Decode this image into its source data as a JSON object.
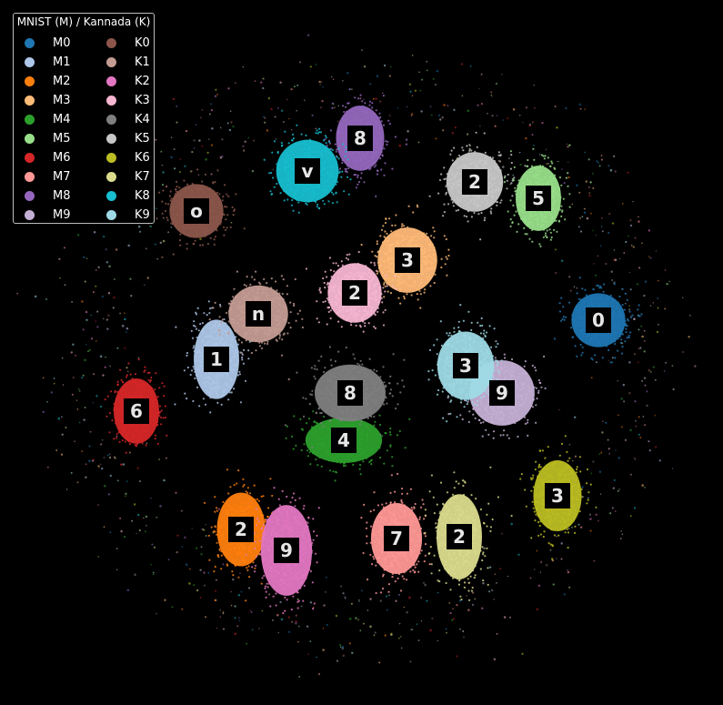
{
  "chart_data": {
    "type": "scatter",
    "title": "",
    "xlabel": "",
    "ylabel": "",
    "legend": {
      "title": "MNIST (M) / Kannada (K)",
      "placement": "top-left"
    },
    "series": [
      {
        "name": "M0",
        "color": "#1f77b4",
        "center": [
          658,
          352
        ],
        "spread": [
          38,
          38
        ],
        "thumb": "0"
      },
      {
        "name": "M1",
        "color": "#aec7e8",
        "center": [
          238,
          395
        ],
        "spread": [
          32,
          56
        ],
        "thumb": "1"
      },
      {
        "name": "M2",
        "color": "#ff7f0e",
        "center": [
          265,
          582
        ],
        "spread": [
          34,
          52
        ],
        "thumb": "2"
      },
      {
        "name": "M3",
        "color": "#ffbb78",
        "center": [
          448,
          286
        ],
        "spread": [
          42,
          46
        ],
        "thumb": "3"
      },
      {
        "name": "M4",
        "color": "#2ca02c",
        "center": [
          378,
          484
        ],
        "spread": [
          54,
          32
        ],
        "thumb": "4"
      },
      {
        "name": "M5",
        "color": "#98df8a",
        "center": [
          592,
          218
        ],
        "spread": [
          32,
          46
        ],
        "thumb": "5"
      },
      {
        "name": "M6",
        "color": "#d62728",
        "center": [
          150,
          452
        ],
        "spread": [
          32,
          46
        ],
        "thumb": "6"
      },
      {
        "name": "M7",
        "color": "#ff9896",
        "center": [
          436,
          592
        ],
        "spread": [
          36,
          50
        ],
        "thumb": "7"
      },
      {
        "name": "M8",
        "color": "#9467bd",
        "center": [
          396,
          152
        ],
        "spread": [
          34,
          46
        ],
        "thumb": "8"
      },
      {
        "name": "M9",
        "color": "#c5b0d5",
        "center": [
          552,
          432
        ],
        "spread": [
          46,
          46
        ],
        "thumb": "9"
      },
      {
        "name": "K0",
        "color": "#8c564b",
        "center": [
          216,
          232
        ],
        "spread": [
          38,
          38
        ],
        "thumb": "o"
      },
      {
        "name": "K1",
        "color": "#c49c94",
        "center": [
          284,
          345
        ],
        "spread": [
          42,
          40
        ],
        "thumb": "n"
      },
      {
        "name": "K2",
        "color": "#e377c2",
        "center": [
          315,
          605
        ],
        "spread": [
          36,
          64
        ],
        "thumb": "9"
      },
      {
        "name": "K3",
        "color": "#f7b6d2",
        "center": [
          390,
          322
        ],
        "spread": [
          38,
          42
        ],
        "thumb": "2"
      },
      {
        "name": "K4",
        "color": "#7f7f7f",
        "center": [
          385,
          432
        ],
        "spread": [
          50,
          40
        ],
        "thumb": "8"
      },
      {
        "name": "K5",
        "color": "#c7c7c7",
        "center": [
          522,
          200
        ],
        "spread": [
          40,
          42
        ],
        "thumb": "2"
      },
      {
        "name": "K6",
        "color": "#bcbd22",
        "center": [
          613,
          545
        ],
        "spread": [
          34,
          50
        ],
        "thumb": "3"
      },
      {
        "name": "K7",
        "color": "#dbdb8d",
        "center": [
          505,
          590
        ],
        "spread": [
          32,
          60
        ],
        "thumb": "2"
      },
      {
        "name": "K8",
        "color": "#17becf",
        "center": [
          338,
          188
        ],
        "spread": [
          44,
          44
        ],
        "thumb": "v"
      },
      {
        "name": "K9",
        "color": "#9edae5",
        "center": [
          512,
          402
        ],
        "spread": [
          40,
          48
        ],
        "thumb": "3"
      }
    ]
  }
}
